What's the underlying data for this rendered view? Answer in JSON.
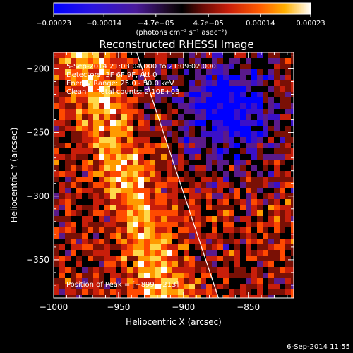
{
  "chart_data": {
    "type": "heatmap",
    "title": "Reconstructed RHESSI Image",
    "xlabel": "Heliocentric X (arcsec)",
    "ylabel": "Heliocentric Y (arcsec)",
    "xlim": [
      -1000,
      -815
    ],
    "ylim": [
      -380,
      -187
    ],
    "x_ticks": [
      -1000,
      -950,
      -900,
      -850
    ],
    "x_tick_labels": [
      "−1000",
      "−950",
      "−900",
      "−850"
    ],
    "y_ticks": [
      -200,
      -250,
      -300,
      -350
    ],
    "y_tick_labels": [
      "−200",
      "−250",
      "−300",
      "−350"
    ],
    "colorbar": {
      "range": [
        -0.00023,
        0.00023
      ],
      "tick_values": [
        -0.00023,
        -0.00014,
        -4.7e-05,
        4.7e-05,
        0.00014,
        0.00023
      ],
      "tick_labels": [
        "−0.00023",
        "−0.00014",
        "−4.7e−05",
        "4.7e−05",
        "0.00014",
        "0.00023"
      ],
      "unit_label": "(photons cm⁻² s⁻¹ asec⁻²)",
      "colors": [
        "#0000ff",
        "#3a10c8",
        "#5a1a8a",
        "#000000",
        "#7a1005",
        "#c81e0a",
        "#ff4a00",
        "#ff9a00",
        "#ffd84a",
        "#ffffff"
      ]
    },
    "annotations": [
      "5-Sep-2014 21:03:04.000 to 21:09:02.000",
      "Detectors: 3F 6F 9F, Att 0",
      "Energy Range: 25.0 - 50.0 keV",
      "Clean     Total counts: 2.10E+03"
    ],
    "peak_label": "Position of Peak = [−899,−213]",
    "limb_line": {
      "x": [
        -936,
        -873
      ],
      "y": [
        -187,
        -380
      ]
    },
    "timestamp": "6-Sep-2014 11:55"
  }
}
